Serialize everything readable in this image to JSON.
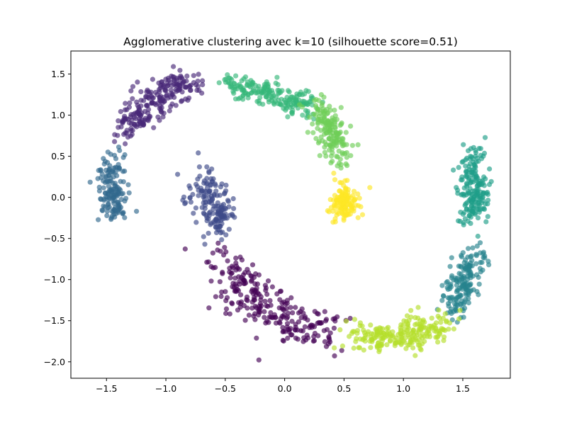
{
  "chart_data": {
    "type": "scatter",
    "title": "Agglomerative clustering avec k=10 (silhouette score=0.51)",
    "xlabel": "",
    "ylabel": "",
    "xlim": [
      -1.8,
      1.9
    ],
    "ylim": [
      -2.2,
      1.78
    ],
    "x_ticks": [
      -1.5,
      -1.0,
      -0.5,
      0.0,
      0.5,
      1.0,
      1.5
    ],
    "x_tick_labels": [
      "−1.5",
      "−1.0",
      "−0.5",
      "0.0",
      "0.5",
      "1.0",
      "1.5"
    ],
    "y_ticks": [
      1.5,
      1.0,
      0.5,
      0.0,
      -0.5,
      -1.0,
      -1.5,
      -2.0
    ],
    "y_tick_labels": [
      "1.5",
      "1.0",
      "0.5",
      "0.0",
      "−0.5",
      "−1.0",
      "−1.5",
      "−2.0"
    ],
    "grid": false,
    "legend": "none",
    "marker_alpha": 0.65,
    "clusters": [
      {
        "color": "#440154",
        "anchors": [
          [
            -0.55,
            -0.7
          ],
          [
            -0.35,
            -1.1
          ],
          [
            -0.15,
            -1.35
          ],
          [
            0.1,
            -1.55
          ],
          [
            0.35,
            -1.62
          ]
        ],
        "spread": [
          0.11,
          0.13
        ],
        "count": 260
      },
      {
        "color": "#482878",
        "anchors": [
          [
            -1.35,
            0.75
          ],
          [
            -1.2,
            1.05
          ],
          [
            -1.0,
            1.3
          ],
          [
            -0.8,
            1.4
          ]
        ],
        "spread": [
          0.09,
          0.09
        ],
        "count": 230
      },
      {
        "color": "#3e4989",
        "anchors": [
          [
            -0.7,
            0.2
          ],
          [
            -0.6,
            -0.1
          ],
          [
            -0.55,
            -0.4
          ]
        ],
        "spread": [
          0.07,
          0.13
        ],
        "count": 160
      },
      {
        "color": "#31688e",
        "anchors": [
          [
            -1.45,
            0.45
          ],
          [
            -1.45,
            0.1
          ],
          [
            -1.42,
            -0.2
          ]
        ],
        "spread": [
          0.06,
          0.1
        ],
        "count": 150
      },
      {
        "color": "#26828e",
        "anchors": [
          [
            1.62,
            -0.65
          ],
          [
            1.5,
            -1.05
          ],
          [
            1.42,
            -1.35
          ]
        ],
        "spread": [
          0.07,
          0.1
        ],
        "count": 170
      },
      {
        "color": "#1f9e89",
        "anchors": [
          [
            1.58,
            0.5
          ],
          [
            1.58,
            0.1
          ],
          [
            1.6,
            -0.25
          ]
        ],
        "spread": [
          0.06,
          0.11
        ],
        "count": 190
      },
      {
        "color": "#35b779",
        "anchors": [
          [
            -0.5,
            1.38
          ],
          [
            -0.2,
            1.3
          ],
          [
            0.05,
            1.18
          ],
          [
            0.2,
            1.1
          ]
        ],
        "spread": [
          0.07,
          0.07
        ],
        "count": 200
      },
      {
        "color": "#6ece58",
        "anchors": [
          [
            0.3,
            1.05
          ],
          [
            0.4,
            0.8
          ],
          [
            0.48,
            0.5
          ]
        ],
        "spread": [
          0.07,
          0.1
        ],
        "count": 170
      },
      {
        "color": "#b5de2b",
        "anchors": [
          [
            0.55,
            -1.65
          ],
          [
            0.85,
            -1.72
          ],
          [
            1.1,
            -1.65
          ],
          [
            1.3,
            -1.5
          ]
        ],
        "spread": [
          0.1,
          0.09
        ],
        "count": 230
      },
      {
        "color": "#fde725",
        "anchors": [
          [
            0.5,
            0.05
          ],
          [
            0.5,
            -0.15
          ]
        ],
        "spread": [
          0.06,
          0.09
        ],
        "count": 130
      }
    ]
  }
}
